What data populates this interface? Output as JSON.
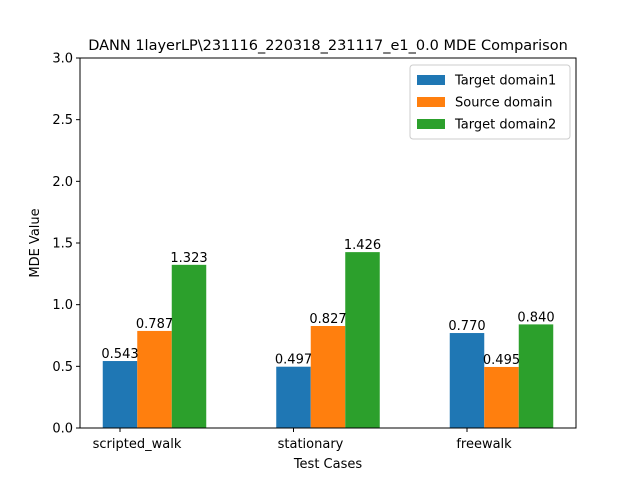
{
  "chart_data": {
    "type": "bar",
    "title": "DANN 1layerLP\\231116_220318_231117_e1_0.0 MDE Comparison",
    "xlabel": "Test Cases",
    "ylabel": "MDE Value",
    "categories": [
      "scripted_walk",
      "stationary",
      "freewalk"
    ],
    "series": [
      {
        "name": "Target domain1",
        "color": "#1f77b4",
        "values": [
          0.543,
          0.497,
          0.77
        ],
        "value_labels": [
          "0.543",
          "0.497",
          "0.770"
        ]
      },
      {
        "name": "Source domain",
        "color": "#ff7f0e",
        "values": [
          0.787,
          0.827,
          0.495
        ],
        "value_labels": [
          "0.787",
          "0.827",
          "0.495"
        ]
      },
      {
        "name": "Target domain2",
        "color": "#2ca02c",
        "values": [
          1.323,
          1.426,
          0.84
        ],
        "value_labels": [
          "1.323",
          "1.426",
          "0.840"
        ]
      }
    ],
    "ylim": [
      0,
      3.0
    ],
    "yticks": [
      0.0,
      0.5,
      1.0,
      1.5,
      2.0,
      2.5,
      3.0
    ],
    "ytick_labels": [
      "0.0",
      "0.5",
      "1.0",
      "1.5",
      "2.0",
      "2.5",
      "3.0"
    ],
    "grid": false,
    "legend_position": "top-right"
  }
}
